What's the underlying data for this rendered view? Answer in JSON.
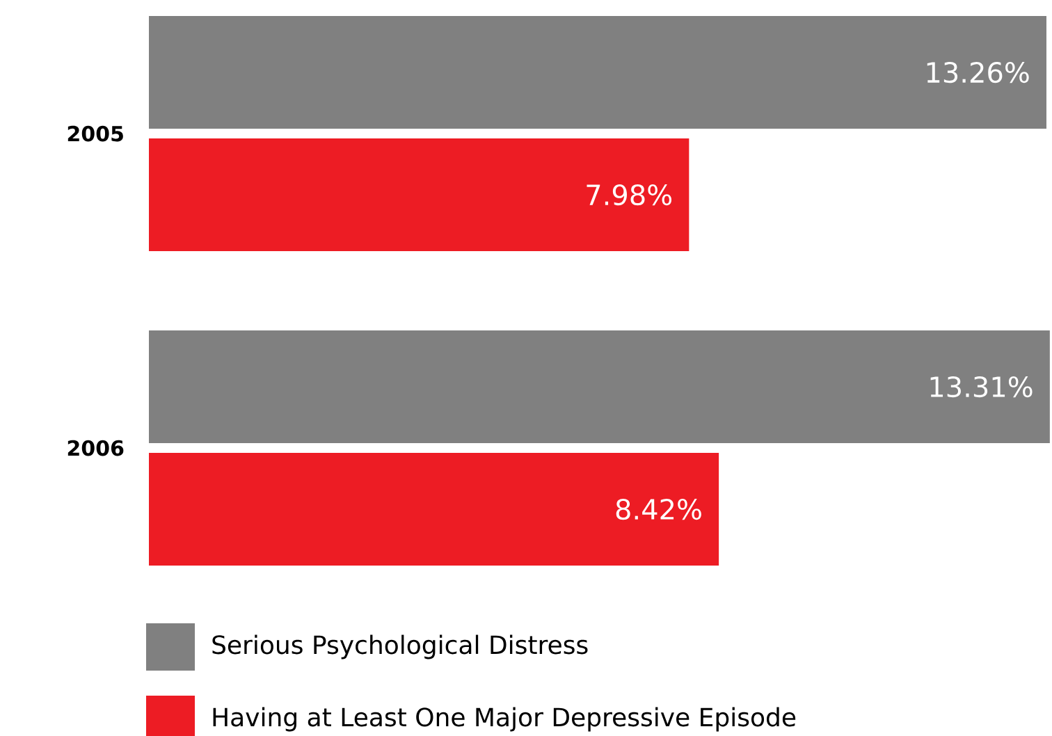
{
  "chart_data": {
    "type": "bar",
    "orientation": "horizontal",
    "categories": [
      "2005",
      "2006"
    ],
    "series": [
      {
        "name": "Serious Psychological Distress",
        "color": "#808080",
        "values": [
          13.26,
          13.31
        ],
        "value_labels": [
          "13.26%",
          "13.31%"
        ]
      },
      {
        "name": "Having at Least One Major Depressive Episode",
        "color": "#ed1c24",
        "values": [
          7.98,
          8.42
        ],
        "value_labels": [
          "7.98%",
          "8.42%"
        ]
      }
    ],
    "legend": "bottom"
  }
}
